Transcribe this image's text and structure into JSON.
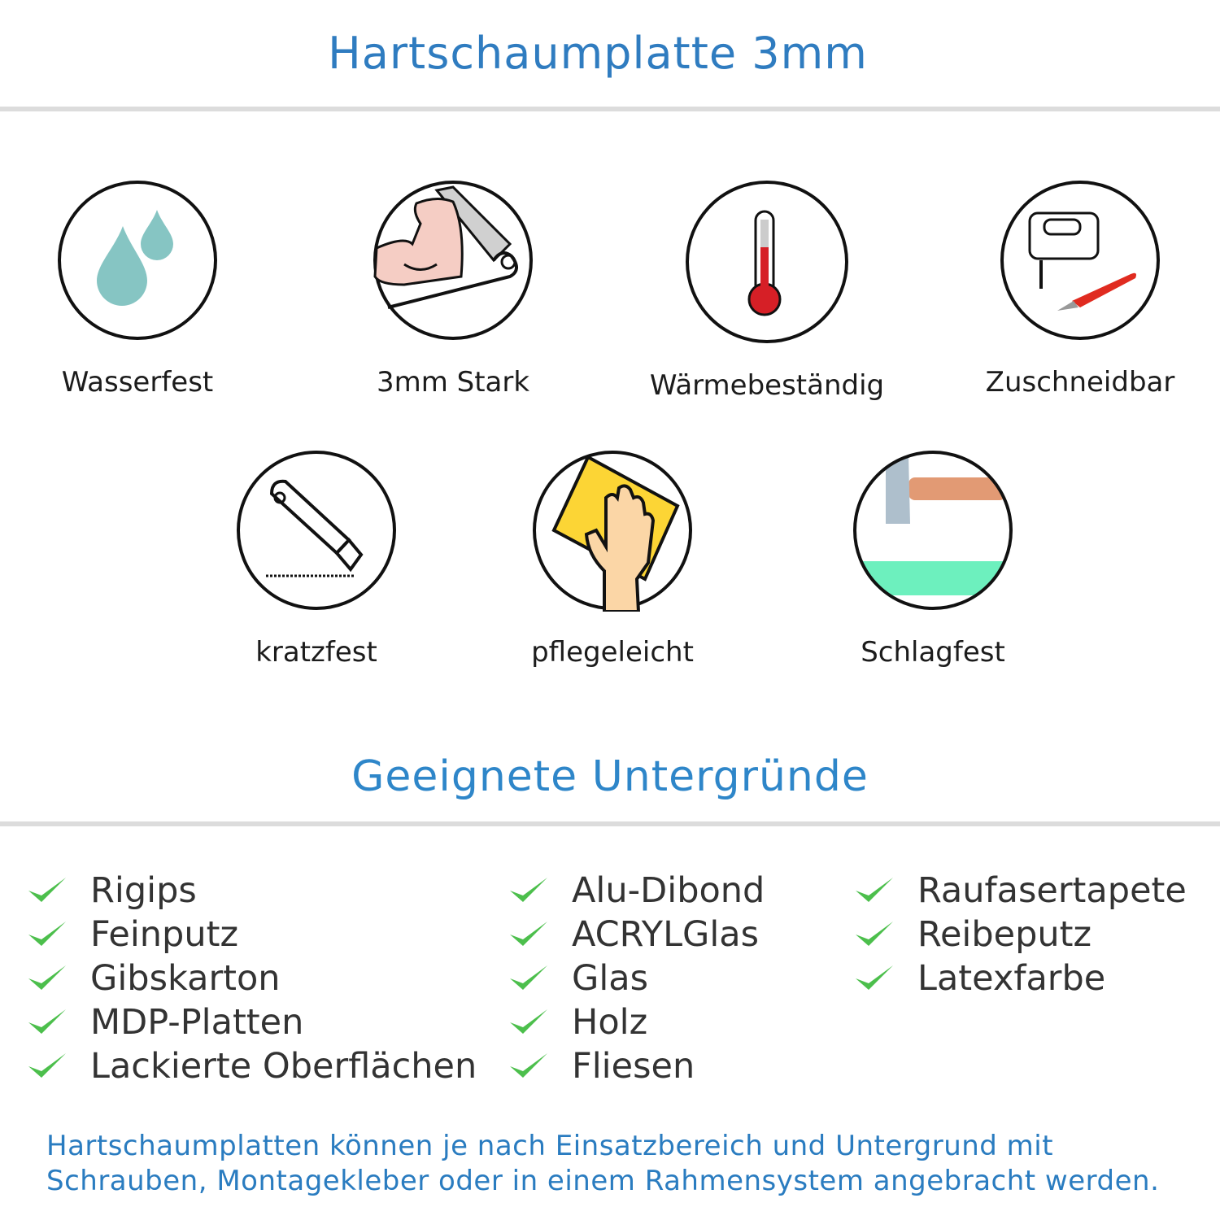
{
  "header": {
    "title": "Hartschaumplatte 3mm"
  },
  "features": [
    {
      "label": "Wasserfest",
      "icon": "water-drops-icon"
    },
    {
      "label": "3mm Stark",
      "icon": "strong-arm-icon"
    },
    {
      "label": "Wärmebeständig",
      "icon": "thermometer-icon"
    },
    {
      "label": "Zuschneidbar",
      "icon": "jigsaw-knife-icon"
    },
    {
      "label": "kratzfest",
      "icon": "cutter-knife-icon"
    },
    {
      "label": "pflegeleicht",
      "icon": "cleaning-hand-icon"
    },
    {
      "label": "Schlagfest",
      "icon": "hammer-icon"
    }
  ],
  "surfaces": {
    "title": "Geeignete Untergründe",
    "columns": [
      [
        "Rigips",
        "Feinputz",
        "Gibskarton",
        "MDP-Platten",
        "Lackierte Oberflächen"
      ],
      [
        "Alu-Dibond",
        "ACRYLGlas",
        "Glas",
        "Holz",
        "Fliesen"
      ],
      [
        "Raufasertapete",
        "Reibeputz",
        "Latexfarbe"
      ]
    ]
  },
  "footer": {
    "line1": "Hartschaumplatten können je nach Einsatzbereich und Untergrund mit",
    "line2": "Schrauben, Montagekleber oder in einem Rahmensystem angebracht werden."
  },
  "colors": {
    "title": "#2f7cc0",
    "check": "#4cbf4c",
    "text": "#333333"
  }
}
